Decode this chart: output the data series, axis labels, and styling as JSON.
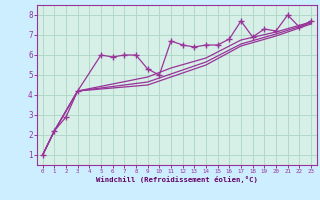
{
  "title": "",
  "xlabel": "Windchill (Refroidissement éolien,°C)",
  "ylabel": "",
  "background_color": "#cceeff",
  "plot_bg": "#d6f0e8",
  "grid_color": "#b0d8c8",
  "line_color": "#993399",
  "tick_color": "#993399",
  "label_color": "#660066",
  "xlim": [
    -0.5,
    23.5
  ],
  "ylim": [
    0.5,
    8.5
  ],
  "xticks": [
    0,
    1,
    2,
    3,
    4,
    5,
    6,
    7,
    8,
    9,
    10,
    11,
    12,
    13,
    14,
    15,
    16,
    17,
    18,
    19,
    20,
    21,
    22,
    23
  ],
  "yticks": [
    1,
    2,
    3,
    4,
    5,
    6,
    7,
    8
  ],
  "series": [
    [
      0,
      1.0
    ],
    [
      1,
      2.2
    ],
    [
      2,
      2.9
    ],
    [
      3,
      4.2
    ],
    [
      5,
      6.0
    ],
    [
      6,
      5.9
    ],
    [
      7,
      6.0
    ],
    [
      8,
      6.0
    ],
    [
      9,
      5.3
    ],
    [
      10,
      5.0
    ],
    [
      11,
      6.7
    ],
    [
      12,
      6.5
    ],
    [
      13,
      6.4
    ],
    [
      14,
      6.5
    ],
    [
      15,
      6.5
    ],
    [
      16,
      6.8
    ],
    [
      17,
      7.7
    ],
    [
      18,
      6.9
    ],
    [
      19,
      7.3
    ],
    [
      20,
      7.2
    ],
    [
      21,
      8.0
    ],
    [
      22,
      7.4
    ],
    [
      23,
      7.7
    ]
  ],
  "series2": [
    [
      0,
      1.0
    ],
    [
      1,
      2.2
    ],
    [
      3,
      4.2
    ],
    [
      9,
      4.9
    ],
    [
      11,
      5.35
    ],
    [
      14,
      5.85
    ],
    [
      17,
      6.75
    ],
    [
      20,
      7.15
    ],
    [
      23,
      7.65
    ]
  ],
  "series3": [
    [
      0,
      1.0
    ],
    [
      1,
      2.2
    ],
    [
      3,
      4.2
    ],
    [
      9,
      4.65
    ],
    [
      14,
      5.65
    ],
    [
      17,
      6.55
    ],
    [
      20,
      7.05
    ],
    [
      23,
      7.6
    ]
  ],
  "series4": [
    [
      0,
      1.0
    ],
    [
      1,
      2.2
    ],
    [
      3,
      4.2
    ],
    [
      9,
      4.5
    ],
    [
      14,
      5.5
    ],
    [
      17,
      6.45
    ],
    [
      20,
      6.95
    ],
    [
      23,
      7.55
    ]
  ]
}
